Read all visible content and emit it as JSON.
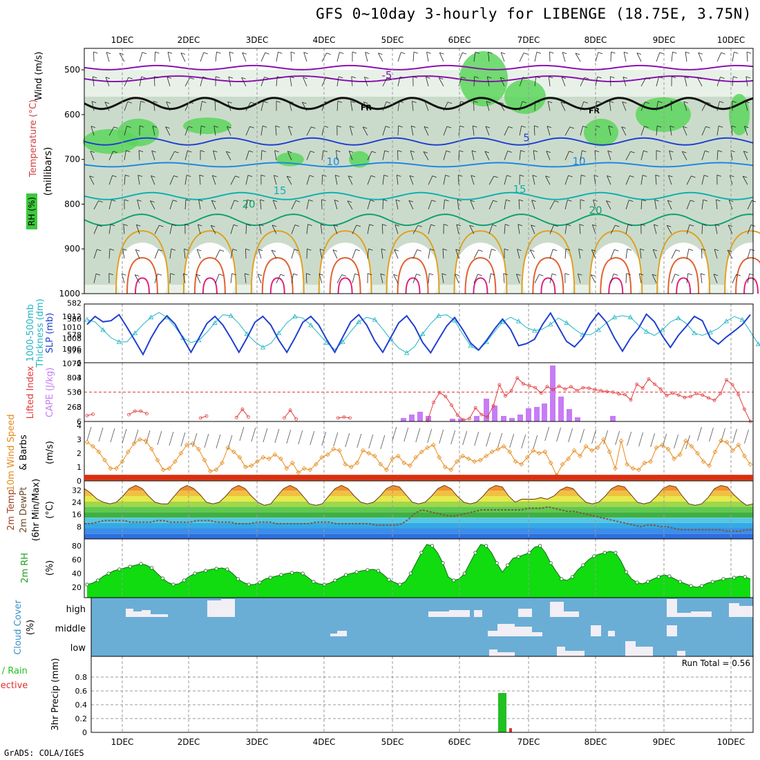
{
  "title": "GFS 0~10day 3-hourly for LIBENGE (18.75E, 3.75N)",
  "credit": "GrADS: COLA/IGES",
  "dates": [
    "1DEC",
    "2DEC",
    "3DEC",
    "4DEC",
    "5DEC",
    "6DEC",
    "7DEC",
    "8DEC",
    "9DEC",
    "10DEC"
  ],
  "colors": {
    "grid": "#8a8a8a",
    "rh_green": "#3cc93c",
    "slp": "#1f3fd0",
    "thickness": "#22b4c4",
    "lifted_index": "#e23a3a",
    "cape": "#c77cf5",
    "wind": "#e68a1a",
    "dewpoint": "#7a5a3a",
    "cloud_bg": "#6aaed6",
    "cloud_fill": "#f2eef5",
    "precip_total": "#22c022",
    "precip_conv": "#e03030"
  },
  "panel_labels": {
    "upper": {
      "wind": "Wind (m/s)",
      "temp": "Temperature (°C)",
      "rh": "RH (%)",
      "axis": "(millibars)"
    },
    "slp": {
      "a": "1000-500mb",
      "b": "Thickness (dm)",
      "c": "SLP (mb)"
    },
    "cape": {
      "a": "Lifted Index",
      "b": "CAPE (J/kg)"
    },
    "wind10": {
      "a": "10m Wind Speed",
      "b": "& Barbs",
      "c": "(m/s)"
    },
    "temp2m": {
      "a": "2m Temp",
      "b": "2m DewPt",
      "c": "(6hr Min/Max)",
      "d": "(°C)"
    },
    "rh2m": {
      "a": "2m RH",
      "b": "(%)"
    },
    "cloud": {
      "a": "Cloud Cover",
      "b": "(%)",
      "high": "high",
      "middle": "middle",
      "low": "low"
    },
    "precip": {
      "a": "Total / Rain",
      "b": "Convective",
      "c": "3hr Precip (mm)",
      "run_total": "Run Total = 0.56"
    }
  },
  "chart_data": [
    {
      "type": "heatmap",
      "panel": "upper-air",
      "yaxis": {
        "label": "(millibars)",
        "ticks": [
          500,
          600,
          700,
          800,
          900,
          1000
        ]
      },
      "contour_labels": [
        {
          "text": "-5",
          "color": "#8a10b0"
        },
        {
          "text": "FR",
          "color": "#000000"
        },
        {
          "text": "FR",
          "color": "#000000"
        },
        {
          "text": "5",
          "color": "#1f3fd0"
        },
        {
          "text": "10",
          "color": "#1f88e0"
        },
        {
          "text": "10",
          "color": "#1f88e0"
        },
        {
          "text": "15",
          "color": "#10b0b0"
        },
        {
          "text": "15",
          "color": "#10b0b0"
        },
        {
          "text": "20",
          "color": "#10a070"
        },
        {
          "text": "20",
          "color": "#10a070"
        }
      ]
    },
    {
      "type": "line",
      "panel": "slp-thickness",
      "yaxis_left": {
        "label": "Thickness (dm)",
        "ticks": [
          576,
          578,
          580,
          582
        ]
      },
      "yaxis_right": {
        "label": "SLP (mb)",
        "ticks": [
          1006,
          1008,
          1010,
          1012,
          1072
        ]
      },
      "series": [
        {
          "name": "SLP (mb)",
          "values": [
            1010.5,
            1012,
            1011,
            1011.2,
            1012.3,
            1010,
            1007.5,
            1005,
            1008,
            1010.5,
            1012.1,
            1010.6,
            1008,
            1005.4,
            1008,
            1010.7,
            1012,
            1010.4,
            1008,
            1005.4,
            1008,
            1010.9,
            1012,
            1010.4,
            1007.6,
            1005.4,
            1008,
            1010.9,
            1012,
            1010.4,
            1007.7,
            1005.4,
            1008.2,
            1011,
            1012.3,
            1010.4,
            1007.5,
            1005.4,
            1008.1,
            1010.8,
            1012.1,
            1010.1,
            1007.2,
            1005.3,
            1007.8,
            1010.2,
            1011.8,
            1009.6,
            1007.1,
            1005.8,
            1007.6,
            1009.7,
            1011.5,
            1009.6,
            1006.6,
            1007,
            1007.8,
            1010.5,
            1012.6,
            1010,
            1007.4,
            1006.4,
            1008,
            1010.7,
            1012.6,
            1010.9,
            1008,
            1005.6,
            1008,
            1009.8,
            1012.4,
            1011,
            1008.4,
            1006.3,
            1008.5,
            1010.2,
            1012,
            1011.2,
            1008,
            1006.9,
            1008.2,
            1009.3,
            1010.5,
            1012.3
          ]
        },
        {
          "name": "1000-500mb Thickness (dm)",
          "values": [
            579.9,
            579.6,
            578.6,
            577.6,
            577.1,
            577.1,
            578.2,
            579.3,
            580.2,
            580.8,
            580.2,
            579,
            577.6,
            577,
            577.3,
            578.3,
            579.5,
            580.5,
            580.4,
            579.4,
            578.1,
            577.1,
            576.4,
            576.9,
            578.2,
            579.5,
            580.3,
            580.1,
            579.2,
            578.1,
            577,
            576.1,
            577.1,
            578.4,
            579.6,
            580.2,
            579.9,
            578.7,
            577.4,
            576.3,
            575.7,
            576.5,
            578.1,
            579.4,
            580.4,
            580.5,
            579.8,
            578.1,
            576.6,
            576,
            577.1,
            578.4,
            579.6,
            580.2,
            579.7,
            578.9,
            578.5,
            578.7,
            579.3,
            580.1,
            579.5,
            578.7,
            578,
            578,
            578.6,
            579.5,
            580.2,
            580.4,
            580.2,
            579.2,
            578.4,
            577.9,
            578.6,
            579.6,
            580.1,
            579.4,
            578.2,
            577.9,
            578.3,
            578.8,
            579.7,
            580.3,
            579.9,
            578.4,
            576.8,
            576.1
          ]
        }
      ]
    },
    {
      "type": "bar",
      "panel": "cape-lifted-index",
      "yaxis_left": {
        "label": "Lifted Index",
        "ticks": [
          -6,
          -3,
          0,
          3,
          6
        ]
      },
      "yaxis_right": {
        "label": "CAPE (J/kg)",
        "ticks": [
          268,
          536,
          804,
          1072
        ]
      },
      "series": [
        {
          "name": "Lifted Index",
          "type": "line",
          "values": [
            4.8,
            4.5,
            null,
            null,
            null,
            null,
            null,
            4.6,
            3.9,
            3.9,
            4.4,
            null,
            null,
            null,
            null,
            null,
            null,
            null,
            null,
            5.3,
            4.9,
            null,
            null,
            null,
            null,
            5.2,
            3.5,
            5.1,
            null,
            null,
            null,
            null,
            null,
            5.3,
            3.7,
            5.5,
            null,
            null,
            null,
            null,
            null,
            null,
            5.3,
            5.1,
            5.3,
            null,
            null,
            null,
            null,
            null,
            null,
            null,
            null,
            null,
            null,
            null,
            null,
            5.8,
            2.1,
            0.1,
            0.9,
            2.7,
            4.7,
            5.7,
            5.4,
            3.2,
            4.6,
            5.1,
            2.8,
            -1.5,
            0.8,
            -0.3,
            -2.9,
            -1.7,
            -1.3,
            -0.9,
            0.2,
            -1.1,
            -0.5,
            -1.2,
            -0.6,
            -1.1,
            -0.3,
            -0.9,
            -0.8,
            -0.5,
            -0.3,
            -0.1,
            0,
            0.4,
            0.5,
            1.6,
            -1.6,
            -0.8,
            -2.7,
            -1.6,
            -0.6,
            0.7,
            0.2,
            0.6,
            1.1,
            0.9,
            0.3,
            0.6,
            1.2,
            1.7,
            0.3,
            -2.5,
            -1.5,
            0.5,
            3.5,
            6.5
          ]
        },
        {
          "name": "CAPE (J/kg)",
          "type": "bar",
          "values": [
            0,
            0,
            0,
            0,
            0,
            0,
            0,
            0,
            0,
            0,
            0,
            0,
            0,
            0,
            0,
            0,
            0,
            0,
            0,
            0,
            0,
            0,
            0,
            0,
            0,
            0,
            0,
            0,
            0,
            0,
            0,
            0,
            0,
            0,
            0,
            0,
            0,
            0,
            0,
            0,
            0,
            0,
            0,
            0,
            0,
            0,
            0,
            0,
            0,
            0,
            0,
            0,
            0,
            0,
            0,
            0,
            0,
            0,
            0,
            0,
            0,
            0,
            0,
            0,
            0,
            0,
            0,
            0,
            0,
            0,
            0,
            0,
            0,
            0,
            0,
            0,
            0,
            0,
            0,
            0,
            0,
            0,
            0,
            0,
            0,
            0,
            0,
            0,
            0,
            0,
            0,
            0,
            0,
            0,
            0,
            0,
            0,
            0,
            0,
            0,
            0,
            0,
            0,
            0,
            0,
            0,
            0,
            0,
            0,
            0,
            0,
            0,
            0,
            0
          ]
        }
      ]
    },
    {
      "type": "line",
      "panel": "10m-wind",
      "yaxis": {
        "label": "(m/s)",
        "ticks": [
          0,
          1,
          2,
          3,
          4
        ]
      },
      "series": [
        {
          "name": "10m Wind Speed",
          "values": [
            2.8,
            2.5,
            2.1,
            1.5,
            0.9,
            0.9,
            1.4,
            2.1,
            2.7,
            3.0,
            2.9,
            2.3,
            1.5,
            0.8,
            0.9,
            1.4,
            2.0,
            2.6,
            2.7,
            2.3,
            1.5,
            0.7,
            0.8,
            1.3,
            2.4,
            2.1,
            1.7,
            1.0,
            1.1,
            1.4,
            1.7,
            1.6,
            1.9,
            1.6,
            0.9,
            1.3,
            0.6,
            0.9,
            0.8,
            1.2,
            1.7,
            1.9,
            2.3,
            2.2,
            1.2,
            1.0,
            1.3,
            2.2,
            2.0,
            1.8,
            1.2,
            0.8,
            1.6,
            1.8,
            1.3,
            1.1,
            1.7,
            2.1,
            2.4,
            2.6,
            1.7,
            1.0,
            0.8,
            1.4,
            1.8,
            1.6,
            1.4,
            1.5,
            1.8,
            2.1,
            2.3,
            2.5,
            2.1,
            1.4,
            1.2,
            1.7,
            2.2,
            2.0,
            2.1,
            1.3,
            0.4,
            1.2,
            1.6,
            2.2,
            1.8,
            2.5,
            2.2,
            2.4,
            3.0,
            2.1,
            0.9,
            2.9,
            1.2,
            0.9,
            0.8,
            1.3,
            1.4,
            2.4,
            2.6,
            2.3,
            1.6,
            1.9,
            2.9,
            2.5,
            2.0,
            1.4,
            1.1,
            2.1,
            2.9,
            2.8,
            2.2,
            2.6,
            1.8,
            1.2
          ]
        }
      ]
    },
    {
      "type": "area",
      "panel": "2m-temp",
      "yaxis": {
        "label": "(°C)",
        "ticks": [
          8,
          16,
          24,
          32
        ]
      },
      "series": [
        {
          "name": "2m Temp",
          "values": [
            33,
            30,
            26,
            24,
            23,
            24,
            28,
            33,
            35,
            33,
            28,
            24,
            23,
            23,
            28,
            33,
            35,
            33,
            29,
            24,
            23,
            24,
            28,
            33,
            35,
            33,
            28,
            24,
            22,
            23,
            28,
            33,
            35,
            33,
            28,
            23,
            22,
            23,
            28,
            33,
            35,
            33,
            28,
            24,
            23,
            24,
            28,
            33,
            35,
            34,
            29,
            24,
            23,
            24,
            28,
            33,
            35,
            33,
            28,
            24,
            23,
            24,
            28,
            33,
            35,
            34,
            28,
            24,
            26,
            26,
            26,
            27,
            26,
            28,
            32,
            34,
            33,
            28,
            24,
            23,
            24,
            28,
            33,
            35,
            34,
            29,
            24,
            23,
            24,
            28,
            33,
            35,
            34,
            28,
            23,
            22,
            23,
            27,
            33,
            35,
            34,
            29,
            25,
            22,
            23
          ]
        },
        {
          "name": "2m DewPt",
          "values": [
            10,
            10,
            11,
            12,
            12,
            12,
            12,
            11,
            11,
            11,
            11,
            12,
            12,
            11,
            11,
            11,
            11,
            12,
            12,
            12,
            11,
            11,
            11,
            10,
            10,
            10,
            11,
            11,
            11,
            10,
            10,
            10,
            10,
            10,
            10,
            11,
            11,
            11,
            10,
            10,
            10,
            10,
            10,
            10,
            9,
            9,
            9,
            9,
            10,
            13,
            17,
            19,
            18,
            17,
            16,
            15,
            15,
            16,
            17,
            18,
            19,
            19,
            19,
            19,
            19,
            19,
            19,
            20,
            20,
            20,
            21,
            20,
            19,
            18,
            18,
            17,
            16,
            15,
            14,
            13,
            12,
            11,
            10,
            9,
            8,
            9,
            9,
            8,
            8,
            7,
            6,
            6,
            6,
            6,
            6,
            6,
            6,
            5,
            5,
            5,
            6,
            6
          ]
        }
      ]
    },
    {
      "type": "area",
      "panel": "2m-rh",
      "yaxis": {
        "label": "(%)",
        "ticks": [
          20,
          40,
          60,
          80
        ]
      },
      "series": [
        {
          "name": "2m RH",
          "values": [
            24,
            26,
            30,
            36,
            40,
            44,
            46,
            48,
            50,
            52,
            54,
            52,
            48,
            40,
            33,
            27,
            24,
            25,
            30,
            36,
            40,
            42,
            44,
            46,
            47,
            48,
            46,
            40,
            32,
            27,
            24,
            24,
            27,
            32,
            34,
            36,
            38,
            40,
            41,
            42,
            40,
            34,
            28,
            25,
            24,
            26,
            30,
            34,
            38,
            40,
            42,
            44,
            45,
            46,
            44,
            38,
            31,
            27,
            24,
            28,
            40,
            55,
            70,
            82,
            80,
            70,
            55,
            35,
            30,
            32,
            40,
            55,
            70,
            82,
            80,
            70,
            55,
            42,
            52,
            62,
            64,
            67,
            70,
            78,
            80,
            70,
            55,
            43,
            32,
            30,
            35,
            45,
            52,
            60,
            65,
            68,
            70,
            72,
            70,
            58,
            42,
            32,
            27,
            25,
            28,
            32,
            35,
            38,
            36,
            32,
            28,
            25,
            22,
            20,
            22,
            26,
            28,
            30,
            32,
            33,
            34,
            36,
            35,
            32
          ]
        }
      ]
    },
    {
      "type": "bar",
      "panel": "cloud-cover",
      "yaxis": {
        "label": "(%)",
        "categories": [
          "high",
          "middle",
          "low"
        ]
      }
    },
    {
      "type": "bar",
      "panel": "3hr-precip",
      "yaxis": {
        "label": "3hr Precip (mm)",
        "ticks": [
          0,
          0.2,
          0.4,
          0.6,
          0.8
        ],
        "ylim": [
          0,
          1
        ]
      },
      "series": [
        {
          "name": "Total / Rain",
          "values": [
            {
              "x": "6DEC-12",
              "y": 0.57
            }
          ]
        },
        {
          "name": "Convective",
          "values": [
            {
              "x": "6DEC-15",
              "y": 0.06
            }
          ]
        }
      ],
      "run_total": "Run Total = 0.56"
    }
  ]
}
